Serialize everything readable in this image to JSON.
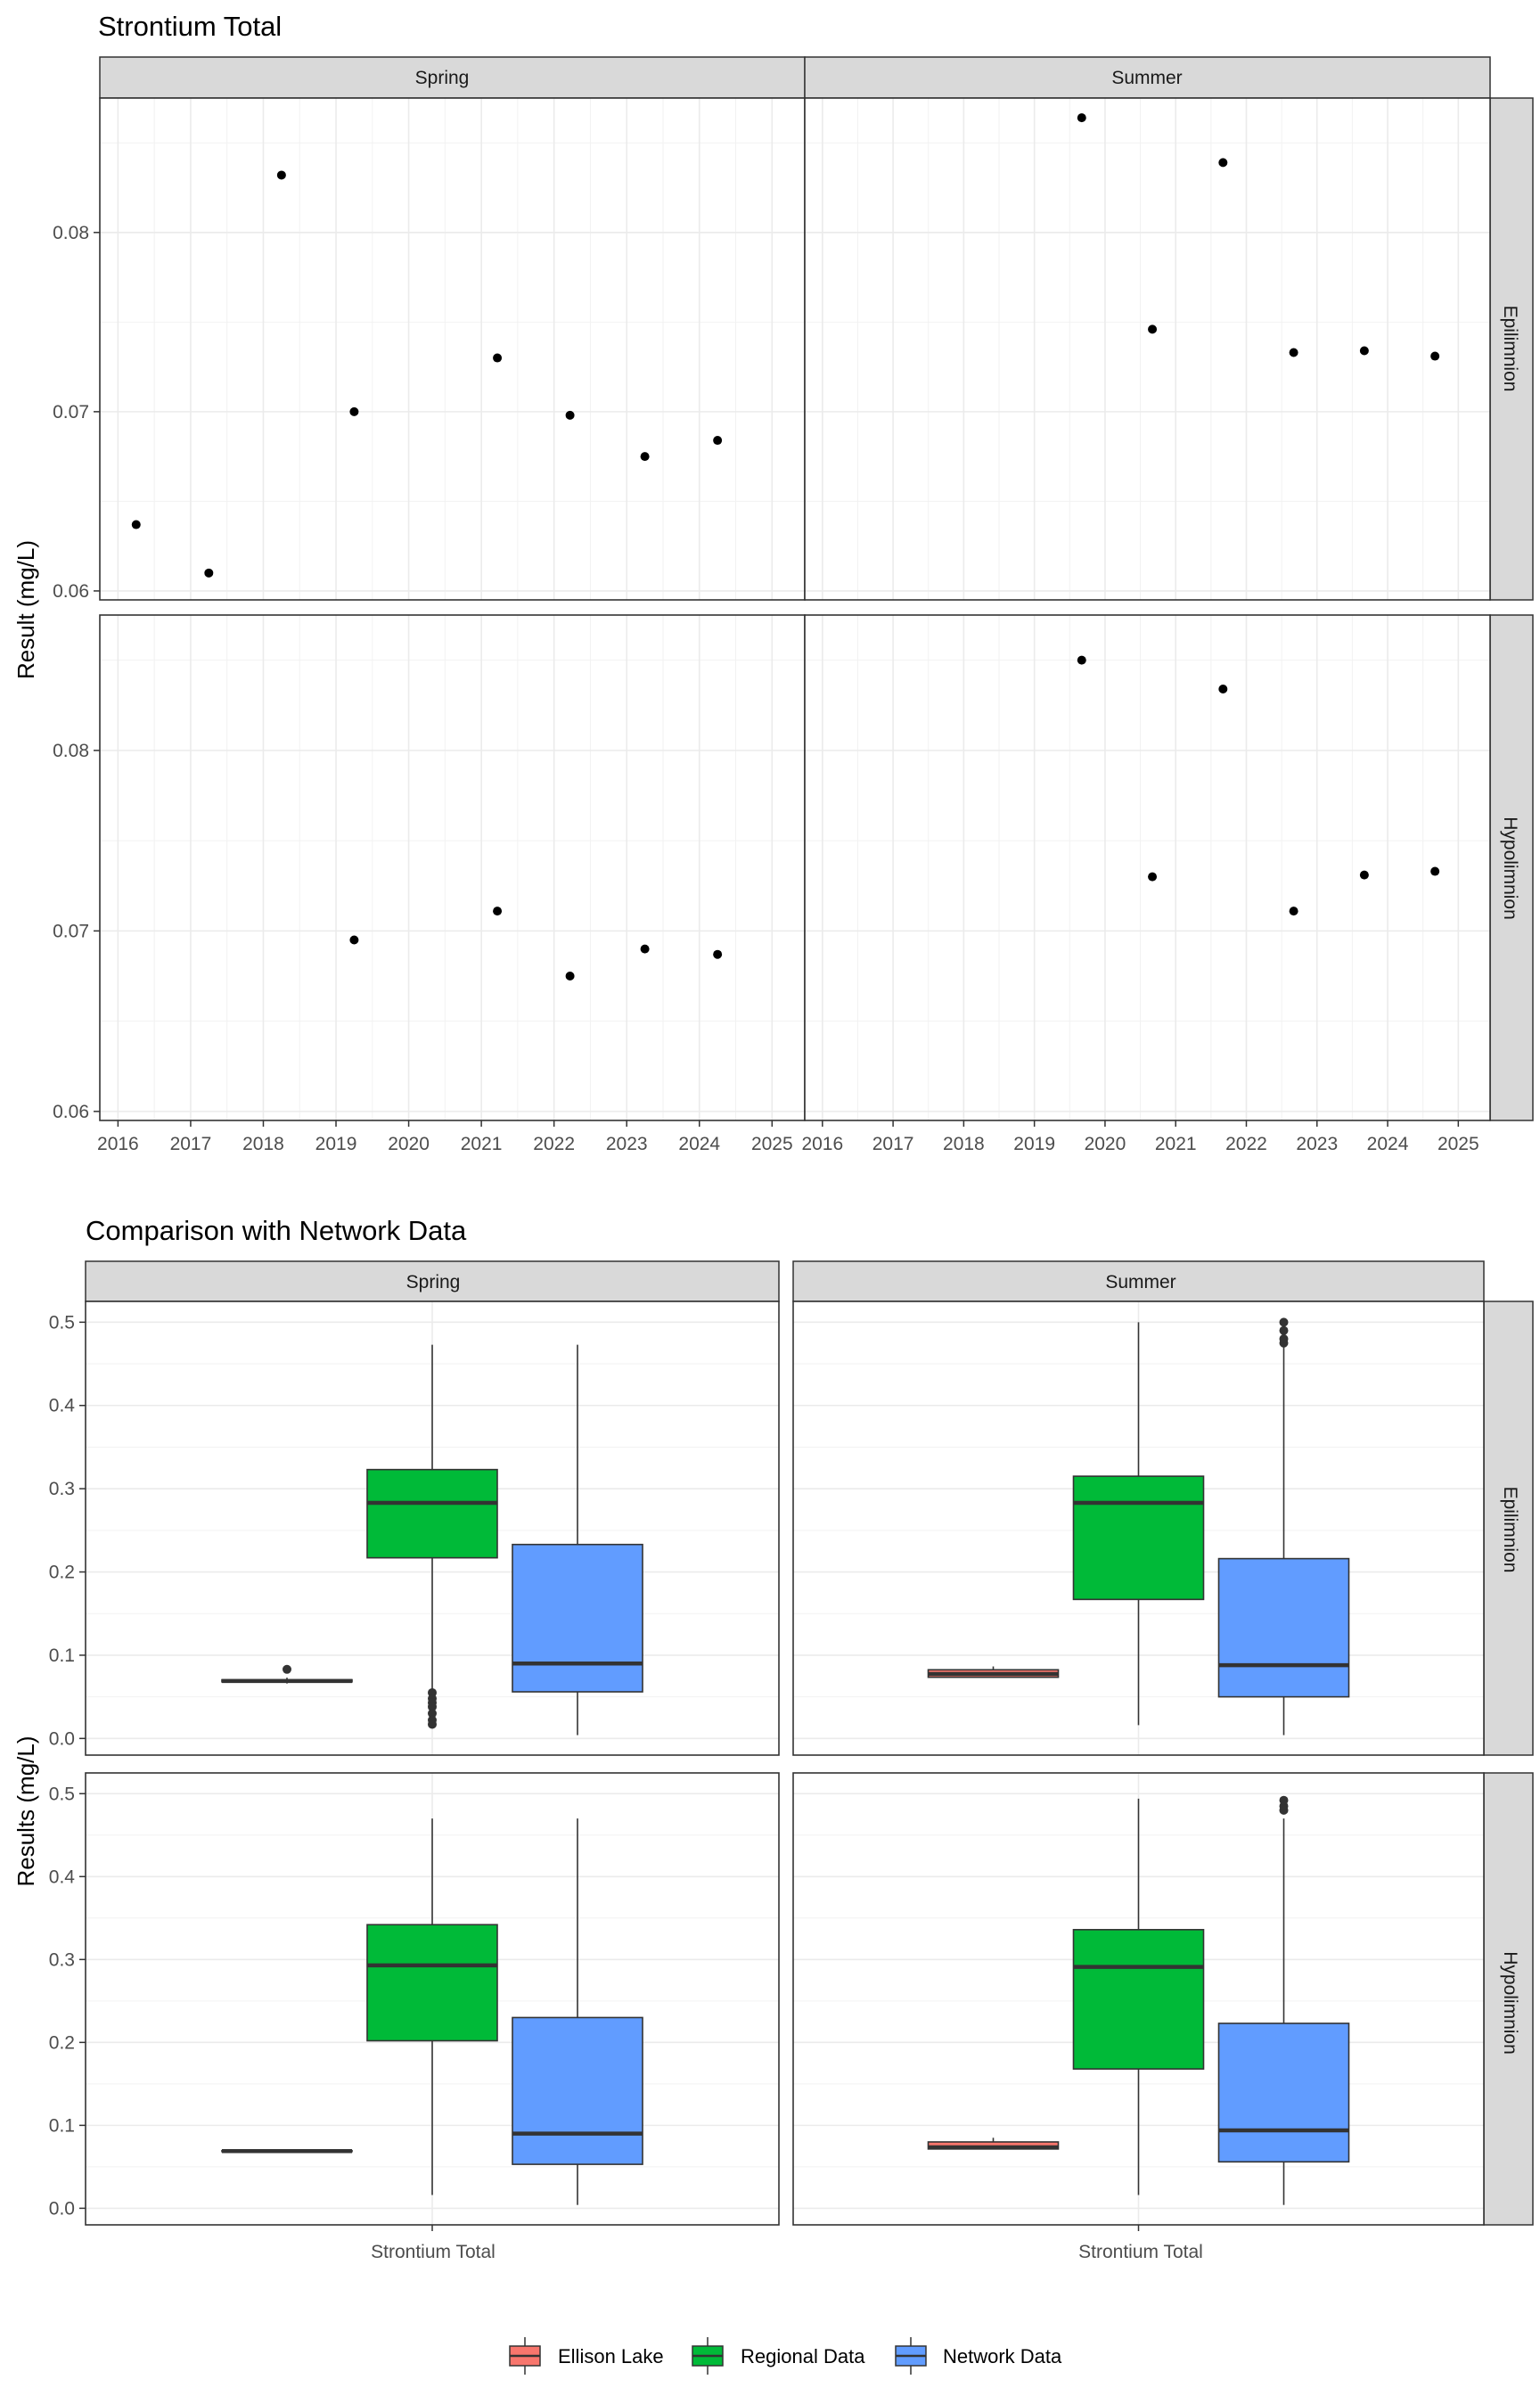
{
  "chart_data": [
    {
      "type": "scatter",
      "title": "Strontium Total",
      "ylabel": "Result (mg/L)",
      "xlabel": "",
      "facet_cols": [
        "Spring",
        "Summer"
      ],
      "facet_rows": [
        "Epilimnion",
        "Hypolimnion"
      ],
      "xlim": [
        2015.75,
        2025.45
      ],
      "ylim": [
        0.0595,
        0.0875
      ],
      "x_ticks": [
        2016,
        2017,
        2018,
        2019,
        2020,
        2021,
        2022,
        2023,
        2024,
        2025
      ],
      "y_ticks": [
        0.06,
        0.07,
        0.08
      ],
      "y_tick_labels": [
        "0.06",
        "0.07",
        "0.08"
      ],
      "grid": true,
      "panels": [
        {
          "col": "Spring",
          "row": "Epilimnion",
          "points": [
            {
              "x": 2016.25,
              "y": 0.0637
            },
            {
              "x": 2017.25,
              "y": 0.061
            },
            {
              "x": 2018.25,
              "y": 0.0832
            },
            {
              "x": 2019.25,
              "y": 0.07
            },
            {
              "x": 2021.22,
              "y": 0.073
            },
            {
              "x": 2022.22,
              "y": 0.0698
            },
            {
              "x": 2023.25,
              "y": 0.0675
            },
            {
              "x": 2024.25,
              "y": 0.0684
            }
          ]
        },
        {
          "col": "Summer",
          "row": "Epilimnion",
          "points": [
            {
              "x": 2019.67,
              "y": 0.0864
            },
            {
              "x": 2020.67,
              "y": 0.0746
            },
            {
              "x": 2021.67,
              "y": 0.0839
            },
            {
              "x": 2022.67,
              "y": 0.0733
            },
            {
              "x": 2023.67,
              "y": 0.0734
            },
            {
              "x": 2024.67,
              "y": 0.0731
            }
          ]
        },
        {
          "col": "Spring",
          "row": "Hypolimnion",
          "points": [
            {
              "x": 2019.25,
              "y": 0.0695
            },
            {
              "x": 2021.22,
              "y": 0.0711
            },
            {
              "x": 2022.22,
              "y": 0.0675
            },
            {
              "x": 2023.25,
              "y": 0.069
            },
            {
              "x": 2024.25,
              "y": 0.0687
            }
          ]
        },
        {
          "col": "Summer",
          "row": "Hypolimnion",
          "points": [
            {
              "x": 2019.67,
              "y": 0.085
            },
            {
              "x": 2020.67,
              "y": 0.073
            },
            {
              "x": 2021.67,
              "y": 0.0834
            },
            {
              "x": 2022.67,
              "y": 0.0711
            },
            {
              "x": 2023.67,
              "y": 0.0731
            },
            {
              "x": 2024.67,
              "y": 0.0733
            }
          ]
        }
      ]
    },
    {
      "type": "box",
      "title": "Comparison with Network Data",
      "ylabel": "Results (mg/L)",
      "xlabel": "",
      "facet_cols": [
        "Spring",
        "Summer"
      ],
      "facet_rows": [
        "Epilimnion",
        "Hypolimnion"
      ],
      "categories": [
        "Strontium Total"
      ],
      "ylim": [
        -0.02,
        0.525
      ],
      "y_ticks": [
        0.0,
        0.1,
        0.2,
        0.3,
        0.4,
        0.5
      ],
      "y_tick_labels": [
        "0.0",
        "0.1",
        "0.2",
        "0.3",
        "0.4",
        "0.5"
      ],
      "grid": true,
      "legend": {
        "position": "bottom",
        "entries": [
          {
            "name": "Ellison Lake",
            "color": "#F8766D"
          },
          {
            "name": "Regional Data",
            "color": "#00BA38"
          },
          {
            "name": "Network Data",
            "color": "#619CFF"
          }
        ]
      },
      "panels": [
        {
          "col": "Spring",
          "row": "Epilimnion",
          "boxes": [
            {
              "series": "Ellison Lake",
              "min": 0.066,
              "q1": 0.068,
              "median": 0.069,
              "q3": 0.0705,
              "max": 0.073,
              "outliers": [
                0.083
              ]
            },
            {
              "series": "Regional Data",
              "min": 0.058,
              "q1": 0.217,
              "median": 0.283,
              "q3": 0.323,
              "max": 0.473,
              "outliers": [
                0.055,
                0.048,
                0.043,
                0.038,
                0.03,
                0.022,
                0.017
              ]
            },
            {
              "series": "Network Data",
              "min": 0.004,
              "q1": 0.056,
              "median": 0.09,
              "q3": 0.233,
              "max": 0.473,
              "outliers": []
            }
          ]
        },
        {
          "col": "Summer",
          "row": "Epilimnion",
          "boxes": [
            {
              "series": "Ellison Lake",
              "min": 0.073,
              "q1": 0.0735,
              "median": 0.0775,
              "q3": 0.0825,
              "max": 0.0865,
              "outliers": []
            },
            {
              "series": "Regional Data",
              "min": 0.016,
              "q1": 0.167,
              "median": 0.283,
              "q3": 0.315,
              "max": 0.5,
              "outliers": []
            },
            {
              "series": "Network Data",
              "min": 0.004,
              "q1": 0.05,
              "median": 0.088,
              "q3": 0.216,
              "max": 0.47,
              "outliers": [
                0.475,
                0.48,
                0.49,
                0.5
              ]
            }
          ]
        },
        {
          "col": "Spring",
          "row": "Hypolimnion",
          "boxes": [
            {
              "series": "Ellison Lake",
              "min": 0.0675,
              "q1": 0.0685,
              "median": 0.069,
              "q3": 0.0695,
              "max": 0.071,
              "outliers": []
            },
            {
              "series": "Regional Data",
              "min": 0.016,
              "q1": 0.202,
              "median": 0.293,
              "q3": 0.342,
              "max": 0.47,
              "outliers": []
            },
            {
              "series": "Network Data",
              "min": 0.004,
              "q1": 0.053,
              "median": 0.09,
              "q3": 0.23,
              "max": 0.47,
              "outliers": []
            }
          ]
        },
        {
          "col": "Summer",
          "row": "Hypolimnion",
          "boxes": [
            {
              "series": "Ellison Lake",
              "min": 0.071,
              "q1": 0.0715,
              "median": 0.0735,
              "q3": 0.08,
              "max": 0.085,
              "outliers": []
            },
            {
              "series": "Regional Data",
              "min": 0.016,
              "q1": 0.168,
              "median": 0.291,
              "q3": 0.336,
              "max": 0.494,
              "outliers": []
            },
            {
              "series": "Network Data",
              "min": 0.004,
              "q1": 0.056,
              "median": 0.094,
              "q3": 0.223,
              "max": 0.47,
              "outliers": [
                0.48,
                0.485,
                0.492
              ]
            }
          ]
        }
      ]
    }
  ]
}
